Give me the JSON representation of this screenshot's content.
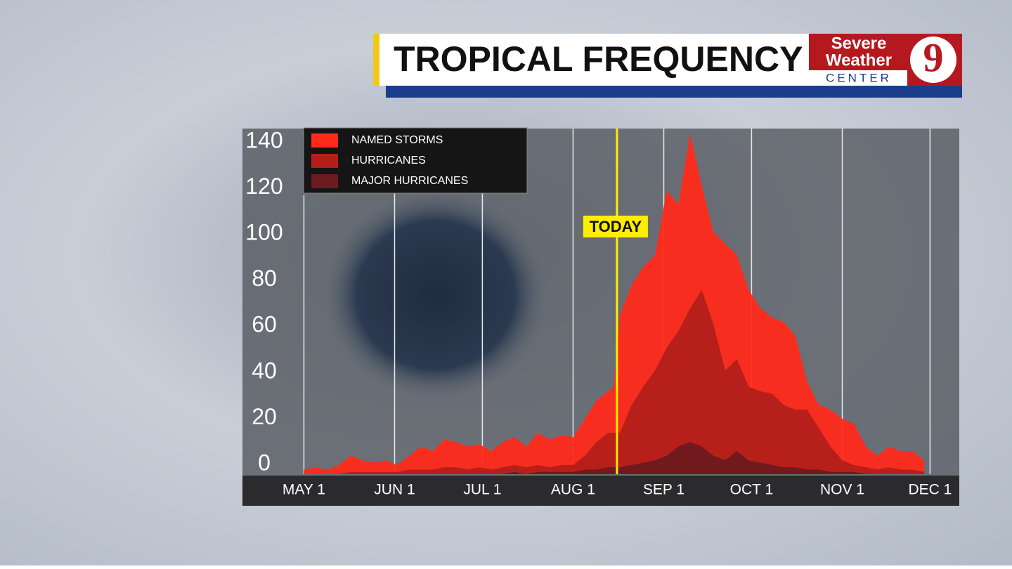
{
  "header": {
    "title": "TROPICAL FREQUENCY",
    "logo_line1": "Severe",
    "logo_line2": "Weather",
    "logo_line3": "CENTER",
    "logo_number": "9"
  },
  "chart_data": {
    "type": "area",
    "x": [
      0,
      4,
      8,
      12,
      16,
      20,
      24,
      28,
      32,
      36,
      40,
      44,
      48,
      52,
      56,
      60,
      64,
      68,
      72,
      76,
      80,
      84,
      88,
      92,
      96,
      100,
      104,
      106,
      108,
      112,
      116,
      120,
      124,
      128,
      132,
      136,
      140,
      144,
      148,
      152,
      156,
      160,
      164,
      168,
      172,
      176,
      180,
      184,
      188,
      192,
      196,
      200,
      204,
      208,
      212
    ],
    "xlim": [
      -21,
      224
    ],
    "xticks": [
      {
        "value": 0,
        "label": "MAY 1"
      },
      {
        "value": 31,
        "label": "JUN 1"
      },
      {
        "value": 61,
        "label": "JUL 1"
      },
      {
        "value": 92,
        "label": "AUG 1"
      },
      {
        "value": 123,
        "label": "SEP 1"
      },
      {
        "value": 153,
        "label": "OCT 1"
      },
      {
        "value": 184,
        "label": "NOV 1"
      },
      {
        "value": 214,
        "label": "DEC 1"
      }
    ],
    "ylim": [
      0,
      150
    ],
    "yticks": [
      0,
      20,
      40,
      60,
      80,
      100,
      120,
      140
    ],
    "grid": true,
    "legend": "upper left",
    "series": [
      {
        "name": "NAMED STORMS",
        "color": "#ff2a1a",
        "values": [
          2,
          3,
          2,
          4,
          8,
          6,
          5,
          6,
          4,
          8,
          12,
          10,
          15,
          14,
          12,
          13,
          10,
          14,
          16,
          12,
          18,
          15,
          17,
          16,
          24,
          32,
          36,
          38,
          69,
          82,
          90,
          95,
          123,
          117,
          148,
          125,
          105,
          100,
          95,
          80,
          72,
          68,
          66,
          60,
          40,
          30,
          28,
          24,
          22,
          12,
          8,
          12,
          10,
          10,
          6
        ]
      },
      {
        "name": "HURRICANES",
        "color": "#b3201a",
        "values": [
          0,
          0,
          0,
          0,
          1,
          1,
          1,
          1,
          1,
          2,
          2,
          2,
          3,
          3,
          2,
          3,
          2,
          3,
          4,
          3,
          4,
          3,
          4,
          4,
          8,
          14,
          18,
          18,
          18,
          30,
          38,
          45,
          55,
          62,
          72,
          80,
          65,
          45,
          50,
          38,
          36,
          35,
          30,
          28,
          28,
          20,
          12,
          6,
          4,
          3,
          2,
          3,
          2,
          2,
          1
        ]
      },
      {
        "name": "MAJOR HURRICANES",
        "color": "#6b1a1e",
        "values": [
          0,
          0,
          0,
          0,
          0,
          0,
          0,
          0,
          0,
          0,
          0,
          0,
          0,
          0,
          0,
          0,
          0,
          0,
          1,
          0,
          1,
          1,
          1,
          1,
          2,
          2,
          3,
          3,
          3,
          4,
          5,
          6,
          8,
          12,
          14,
          12,
          8,
          6,
          10,
          6,
          5,
          4,
          3,
          3,
          2,
          2,
          1,
          1,
          1,
          0,
          0,
          0,
          0,
          0,
          0
        ]
      }
    ],
    "annotation": {
      "x": 107,
      "label": "TODAY"
    }
  }
}
